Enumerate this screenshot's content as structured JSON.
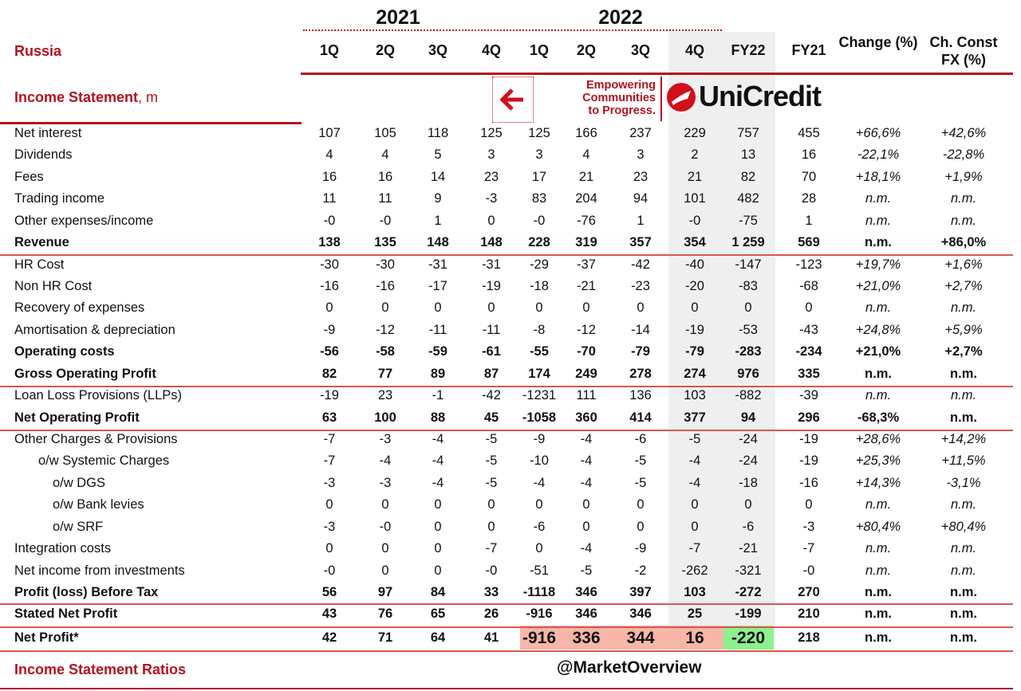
{
  "header": {
    "region": "Russia",
    "years": [
      "2021",
      "2022"
    ],
    "columns": [
      "1Q",
      "2Q",
      "3Q",
      "4Q",
      "1Q",
      "2Q",
      "3Q",
      "4Q",
      "FY22",
      "FY21",
      "Change (%)",
      "Ch. Const FX (%)"
    ]
  },
  "section_title": "Income Statement",
  "section_unit": ", m",
  "logo": {
    "tagline": [
      "Empowering",
      "Communities",
      "to Progress."
    ],
    "brand": "UniCredit",
    "back_icon": "arrow-left-icon"
  },
  "colors": {
    "accent": "#b3121e",
    "highlight_red": "#f8b6a8",
    "highlight_green": "#8ef08e",
    "shade": "#efefef"
  },
  "rows": [
    {
      "label": "Net interest",
      "values": [
        "107",
        "105",
        "118",
        "125",
        "125",
        "166",
        "237",
        "229",
        "757",
        "455",
        "+66,6%",
        "+42,6%"
      ]
    },
    {
      "label": "Dividends",
      "values": [
        "4",
        "4",
        "5",
        "3",
        "3",
        "4",
        "3",
        "2",
        "13",
        "16",
        "-22,1%",
        "-22,8%"
      ]
    },
    {
      "label": "Fees",
      "values": [
        "16",
        "16",
        "14",
        "23",
        "17",
        "21",
        "23",
        "21",
        "82",
        "70",
        "+18,1%",
        "+1,9%"
      ]
    },
    {
      "label": "Trading income",
      "values": [
        "11",
        "11",
        "9",
        "-3",
        "83",
        "204",
        "94",
        "101",
        "482",
        "28",
        "n.m.",
        "n.m."
      ]
    },
    {
      "label": "Other expenses/income",
      "values": [
        "-0",
        "-0",
        "1",
        "0",
        "-0",
        "-76",
        "1",
        "-0",
        "-75",
        "1",
        "n.m.",
        "n.m."
      ]
    },
    {
      "label": "Revenue",
      "bold": true,
      "values": [
        "138",
        "135",
        "148",
        "148",
        "228",
        "319",
        "357",
        "354",
        "1 259",
        "569",
        "n.m.",
        "+86,0%"
      ]
    },
    {
      "label": "HR Cost",
      "values": [
        "-30",
        "-30",
        "-31",
        "-31",
        "-29",
        "-37",
        "-42",
        "-40",
        "-147",
        "-123",
        "+19,7%",
        "+1,6%"
      ]
    },
    {
      "label": "Non HR Cost",
      "values": [
        "-16",
        "-16",
        "-17",
        "-19",
        "-18",
        "-21",
        "-23",
        "-20",
        "-83",
        "-68",
        "+21,0%",
        "+2,7%"
      ]
    },
    {
      "label": "Recovery of expenses",
      "values": [
        "0",
        "0",
        "0",
        "0",
        "0",
        "0",
        "0",
        "0",
        "0",
        "0",
        "n.m.",
        "n.m."
      ]
    },
    {
      "label": "Amortisation & depreciation",
      "values": [
        "-9",
        "-12",
        "-11",
        "-11",
        "-8",
        "-12",
        "-14",
        "-19",
        "-53",
        "-43",
        "+24,8%",
        "+5,9%"
      ]
    },
    {
      "label": "Operating costs",
      "bold": true,
      "values": [
        "-56",
        "-58",
        "-59",
        "-61",
        "-55",
        "-70",
        "-79",
        "-79",
        "-283",
        "-234",
        "+21,0%",
        "+2,7%"
      ]
    },
    {
      "label": "Gross Operating Profit",
      "bold": true,
      "values": [
        "82",
        "77",
        "89",
        "87",
        "174",
        "249",
        "278",
        "274",
        "976",
        "335",
        "n.m.",
        "n.m."
      ]
    },
    {
      "label": "Loan Loss Provisions (LLPs)",
      "values": [
        "-19",
        "23",
        "-1",
        "-42",
        "-1231",
        "111",
        "136",
        "103",
        "-882",
        "-39",
        "n.m.",
        "n.m."
      ]
    },
    {
      "label": "Net Operating Profit",
      "bold": true,
      "values": [
        "63",
        "100",
        "88",
        "45",
        "-1058",
        "360",
        "414",
        "377",
        "94",
        "296",
        "-68,3%",
        "n.m."
      ]
    },
    {
      "label": "Other Charges & Provisions",
      "values": [
        "-7",
        "-3",
        "-4",
        "-5",
        "-9",
        "-4",
        "-6",
        "-5",
        "-24",
        "-19",
        "+28,6%",
        "+14,2%"
      ]
    },
    {
      "label": "o/w Systemic Charges",
      "indent": 1,
      "values": [
        "-7",
        "-4",
        "-4",
        "-5",
        "-10",
        "-4",
        "-5",
        "-4",
        "-24",
        "-19",
        "+25,3%",
        "+11,5%"
      ]
    },
    {
      "label": "o/w DGS",
      "indent": 2,
      "values": [
        "-3",
        "-3",
        "-4",
        "-5",
        "-4",
        "-4",
        "-5",
        "-4",
        "-18",
        "-16",
        "+14,3%",
        "-3,1%"
      ]
    },
    {
      "label": "o/w Bank levies",
      "indent": 2,
      "values": [
        "0",
        "0",
        "0",
        "0",
        "0",
        "0",
        "0",
        "0",
        "0",
        "0",
        "n.m.",
        "n.m."
      ]
    },
    {
      "label": "o/w SRF",
      "indent": 2,
      "values": [
        "-3",
        "-0",
        "0",
        "0",
        "-6",
        "0",
        "0",
        "0",
        "-6",
        "-3",
        "+80,4%",
        "+80,4%"
      ]
    },
    {
      "label": "Integration costs",
      "values": [
        "0",
        "0",
        "0",
        "-7",
        "0",
        "-4",
        "-9",
        "-7",
        "-21",
        "-7",
        "n.m.",
        "n.m."
      ]
    },
    {
      "label": "Net income from investments",
      "values": [
        "-0",
        "0",
        "0",
        "-0",
        "-51",
        "-5",
        "-2",
        "-262",
        "-321",
        "-0",
        "n.m.",
        "n.m."
      ]
    },
    {
      "label": "Profit (loss) Before Tax",
      "bold": true,
      "values": [
        "56",
        "97",
        "84",
        "33",
        "-1118",
        "346",
        "397",
        "103",
        "-272",
        "270",
        "n.m.",
        "n.m."
      ]
    },
    {
      "label": "Stated Net Profit",
      "bold": true,
      "values": [
        "43",
        "76",
        "65",
        "26",
        "-916",
        "346",
        "346",
        "25",
        "-199",
        "210",
        "n.m.",
        "n.m."
      ]
    },
    {
      "label": "Net Profit*",
      "bold": true,
      "values": [
        "42",
        "71",
        "64",
        "41",
        "-916",
        "336",
        "344",
        "16",
        "-220",
        "218",
        "n.m.",
        "n.m."
      ]
    }
  ],
  "footer": {
    "ratios_title": "Income Statement Ratios",
    "watermark": "@MarketOverview"
  }
}
